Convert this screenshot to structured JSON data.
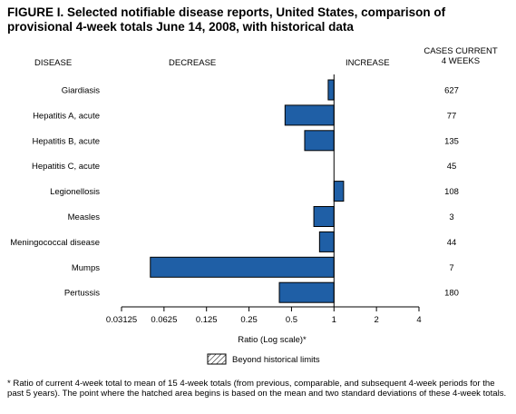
{
  "title": "FIGURE I. Selected notifiable disease reports, United States, comparison of provisional 4-week totals June 14, 2008, with historical data",
  "headers": {
    "disease": "DISEASE",
    "decrease": "DECREASE",
    "increase": "INCREASE",
    "cases_line1": "CASES CURRENT",
    "cases_line2": "4 WEEKS"
  },
  "legend": {
    "label": "Beyond historical limits"
  },
  "footnote": "* Ratio of current 4-week total to mean of 15 4-week totals (from previous, comparable, and subsequent 4-week periods for the past 5 years). The point where the hatched area begins is based on the mean and two standard deviations of these 4-week totals.",
  "colors": {
    "bar_fill": "#1f5fa6",
    "bar_stroke": "#000000"
  },
  "chart_data": {
    "type": "bar",
    "orientation": "horizontal",
    "xlabel": "Ratio (Log scale)*",
    "x_scale": "log2",
    "xlim": [
      0.03125,
      4
    ],
    "x_ticks": [
      0.03125,
      0.0625,
      0.125,
      0.25,
      0.5,
      1,
      2,
      4
    ],
    "x_tick_labels": [
      "0.03125",
      "0.0625",
      "0.125",
      "0.25",
      "0.5",
      "1",
      "2",
      "4"
    ],
    "baseline": 1,
    "categories": [
      "Giardiasis",
      "Hepatitis A, acute",
      "Hepatitis B, acute",
      "Hepatitis C, acute",
      "Legionellosis",
      "Measles",
      "Meningococcal disease",
      "Mumps",
      "Pertussis"
    ],
    "values": [
      0.91,
      0.45,
      0.62,
      1.0,
      1.17,
      0.72,
      0.79,
      0.05,
      0.41
    ],
    "cases": [
      "627",
      "77",
      "135",
      "45",
      "108",
      "3",
      "44",
      "7",
      "180"
    ],
    "beyond_historical_limits": [
      false,
      false,
      false,
      false,
      false,
      false,
      false,
      false,
      false
    ],
    "legend_position": "bottom-center",
    "grid": false
  }
}
